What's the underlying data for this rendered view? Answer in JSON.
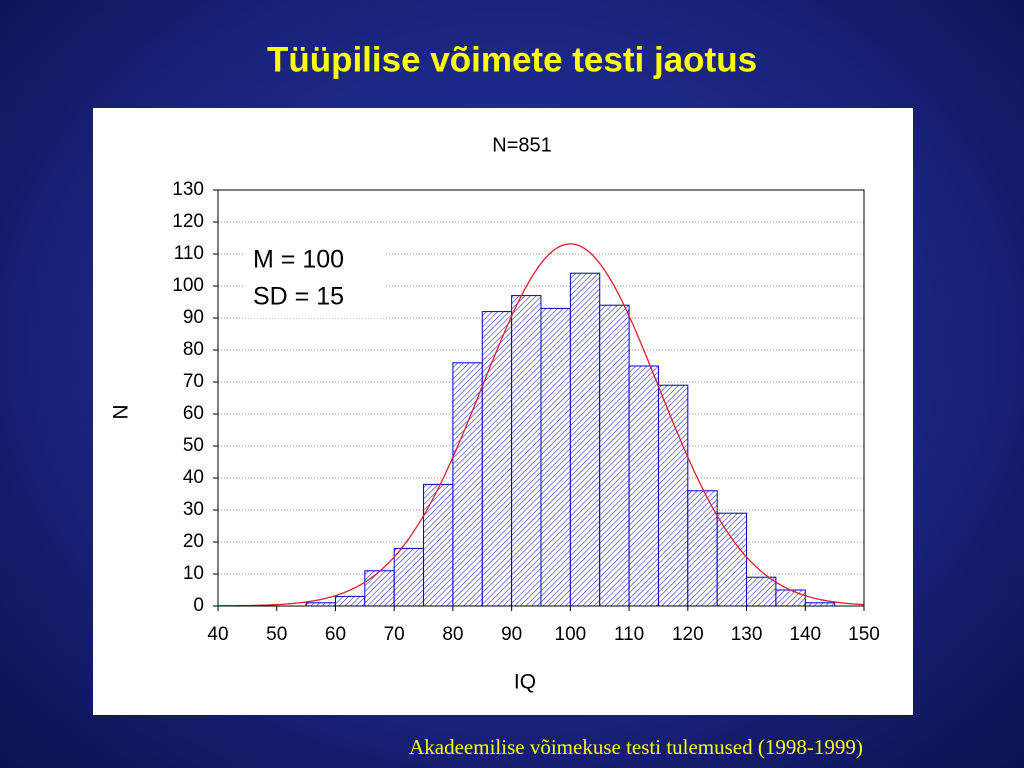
{
  "slide_title": "Tüüpilise võimete testi jaotus",
  "footer": "Akadeemilise võimekuse testi tulemused (1998-1999)",
  "chart_data": {
    "type": "histogram",
    "title": "N=851",
    "x_label": "IQ",
    "y_label": "N",
    "bins": [
      55,
      60,
      65,
      70,
      75,
      80,
      85,
      90,
      95,
      100,
      105,
      110,
      115,
      120,
      125,
      130,
      135,
      140,
      145
    ],
    "values": [
      1,
      3,
      11,
      18,
      38,
      76,
      92,
      97,
      93,
      104,
      94,
      75,
      69,
      36,
      29,
      9,
      5,
      1
    ],
    "color": "#0000cc",
    "xlim": [
      40,
      150
    ],
    "xticks": [
      40,
      50,
      60,
      70,
      80,
      90,
      100,
      110,
      120,
      130,
      140,
      150
    ],
    "ylim": [
      0,
      130
    ],
    "yticks": [
      0,
      10,
      20,
      30,
      40,
      50,
      60,
      70,
      80,
      90,
      100,
      110,
      120,
      130
    ],
    "grid": true,
    "annotations": [
      "M = 100",
      "SD = 15"
    ],
    "fit": {
      "mean": 100,
      "sd": 15,
      "n": 851,
      "color": "#e0202a"
    }
  }
}
